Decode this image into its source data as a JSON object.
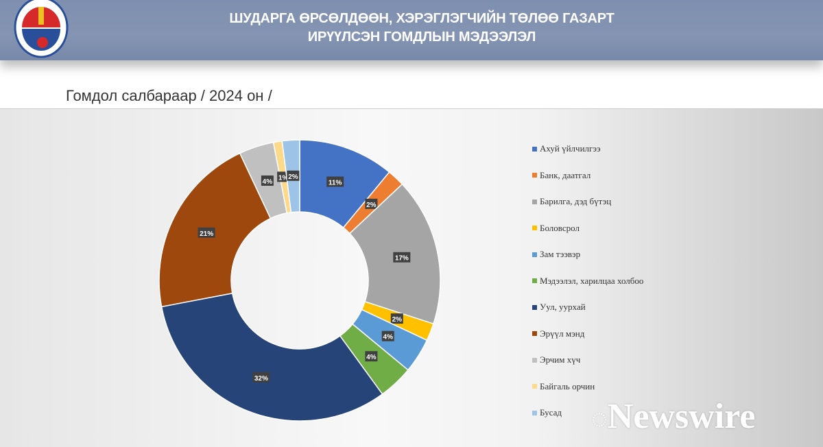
{
  "header": {
    "title_line1": "ШУДАРГА ӨРСӨЛДӨӨН, ХЭРЭГЛЭГЧИЙН ТӨЛӨӨ ГАЗАРТ",
    "title_line2": "ИРҮҮЛСЭН ГОМДЛЫН МЭДЭЭЛЭЛ"
  },
  "watermark": "Newswire",
  "chart_data": {
    "type": "pie",
    "variant": "donut",
    "title": "Гомдол салбараар / 2024 он /",
    "legend_position": "right",
    "categories": [
      "Ахуй үйлчилгээ",
      "Банк, даатгал",
      "Барилга, дэд бүтэц",
      "Боловсрол",
      "Зам тээвэр",
      "Мэдээлэл, харилцаа холбоо",
      "Уул, уурхай",
      "Эрүүл мэнд",
      "Эрчим хүч",
      "Байгаль орчин",
      "Бусад"
    ],
    "values": [
      11,
      2,
      17,
      2,
      4,
      4,
      32,
      21,
      4,
      1,
      2
    ],
    "labels": [
      "11%",
      "2%",
      "17%",
      "2%",
      "4%",
      "4%",
      "32%",
      "21%",
      "4%",
      "1%",
      "2%"
    ],
    "colors": [
      "#4472c4",
      "#ed7d31",
      "#a5a5a5",
      "#ffc000",
      "#5b9bd5",
      "#70ad47",
      "#264478",
      "#9e480e",
      "#c0c0c0",
      "#ffd98a",
      "#9dc3e6"
    ]
  }
}
